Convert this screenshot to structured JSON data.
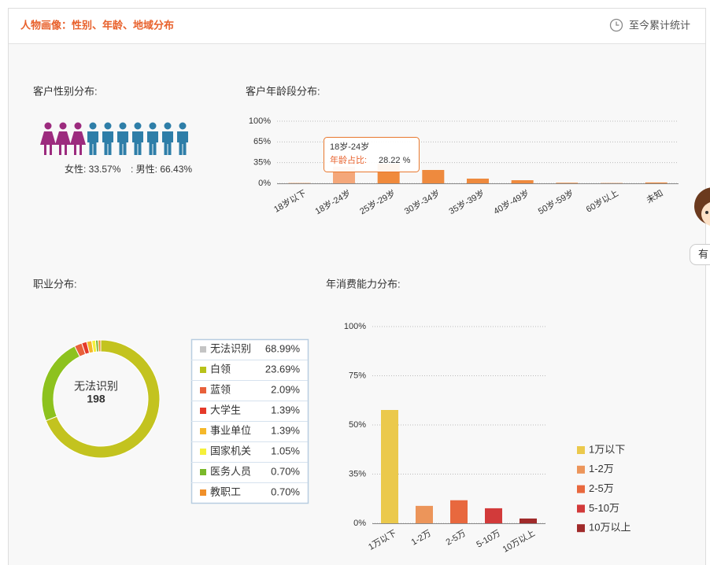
{
  "header": {
    "title": "人物画像：性别、年龄、地域分布",
    "stat": "至今累计统计"
  },
  "side_button": "有",
  "chart_data": [
    {
      "type": "pictogram",
      "title": "客户性别分布:",
      "values": [
        33.57,
        66.43
      ],
      "value_labels": [
        "女性: 33.57%",
        ": 男性: 66.43%"
      ],
      "colors": [
        "#9c2b7e",
        "#2e7ea8"
      ]
    },
    {
      "type": "bar",
      "title": "客户年龄段分布:",
      "categories": [
        "18岁以下",
        "18岁-24岁",
        "25岁-29岁",
        "30岁-34岁",
        "35岁-39岁",
        "40岁-49岁",
        "50岁-59岁",
        "60岁以上",
        "未知"
      ],
      "values": [
        0.5,
        28.22,
        33,
        22.6,
        8,
        5.3,
        1,
        0.5,
        1.5
      ],
      "colors": [
        "#ee8a3e",
        "#f4a77a",
        "#f08a3c",
        "#ee8a3e",
        "#ee8a3e",
        "#ee8a3e",
        "#ee8a3e",
        "#ee8a3e",
        "#ee8a3e"
      ],
      "ylim": [
        0,
        100
      ],
      "yticks": [
        {
          "value": 0,
          "label": "0%"
        },
        {
          "value": 35,
          "label": "35%"
        },
        {
          "value": 65,
          "label": "65%"
        },
        {
          "value": 100,
          "label": "100%"
        }
      ],
      "yscale": "tick-spaced",
      "grid": true,
      "tooltip": {
        "title": "18岁-24岁",
        "label": "年龄占比:",
        "text": "28.22 %"
      }
    },
    {
      "type": "donut",
      "title": "职业分布:",
      "categories": [
        "无法识别",
        "白领",
        "蓝领",
        "大学生",
        "事业单位",
        "国家机关",
        "医务人员",
        "教职工"
      ],
      "values": [
        68.99,
        23.69,
        2.09,
        1.39,
        1.39,
        1.05,
        0.7,
        0.7
      ],
      "value_labels": [
        "68.99%",
        "23.69%",
        "2.09%",
        "1.39%",
        "1.39%",
        "1.05%",
        "0.70%",
        "0.70%"
      ],
      "colors": [
        "#c3c31f",
        "#8dc21e",
        "#e8603a",
        "#e53a2a",
        "#f5b82a",
        "#f5f03a",
        "#7ab82a",
        "#f0902a"
      ],
      "legend_colors": [
        "#c4c4c4",
        "#b8c21a",
        "#e8603a",
        "#e53a2a",
        "#f5b82a",
        "#f5f03a",
        "#7ab82a",
        "#f0902a"
      ],
      "center_label": "无法识别",
      "center_value": 198
    },
    {
      "type": "bar",
      "title": "年消费能力分布:",
      "categories": [
        "1万以下",
        "1-2万",
        "2-5万",
        "5-10万",
        "10万以上"
      ],
      "values": [
        57.6,
        12.4,
        16.4,
        10.7,
        3.4
      ],
      "colors": [
        "#ebc94c",
        "#ec955a",
        "#e8683e",
        "#d23a3a",
        "#a02a2a"
      ],
      "ylim": [
        0,
        100
      ],
      "yticks": [
        {
          "value": 0,
          "label": "0%"
        },
        {
          "value": 35,
          "label": "35%"
        },
        {
          "value": 50,
          "label": "50%"
        },
        {
          "value": 75,
          "label": "75%"
        },
        {
          "value": 100,
          "label": "100%"
        }
      ],
      "yscale": "tick-spaced",
      "grid": true,
      "legend": "bottom-right"
    }
  ]
}
